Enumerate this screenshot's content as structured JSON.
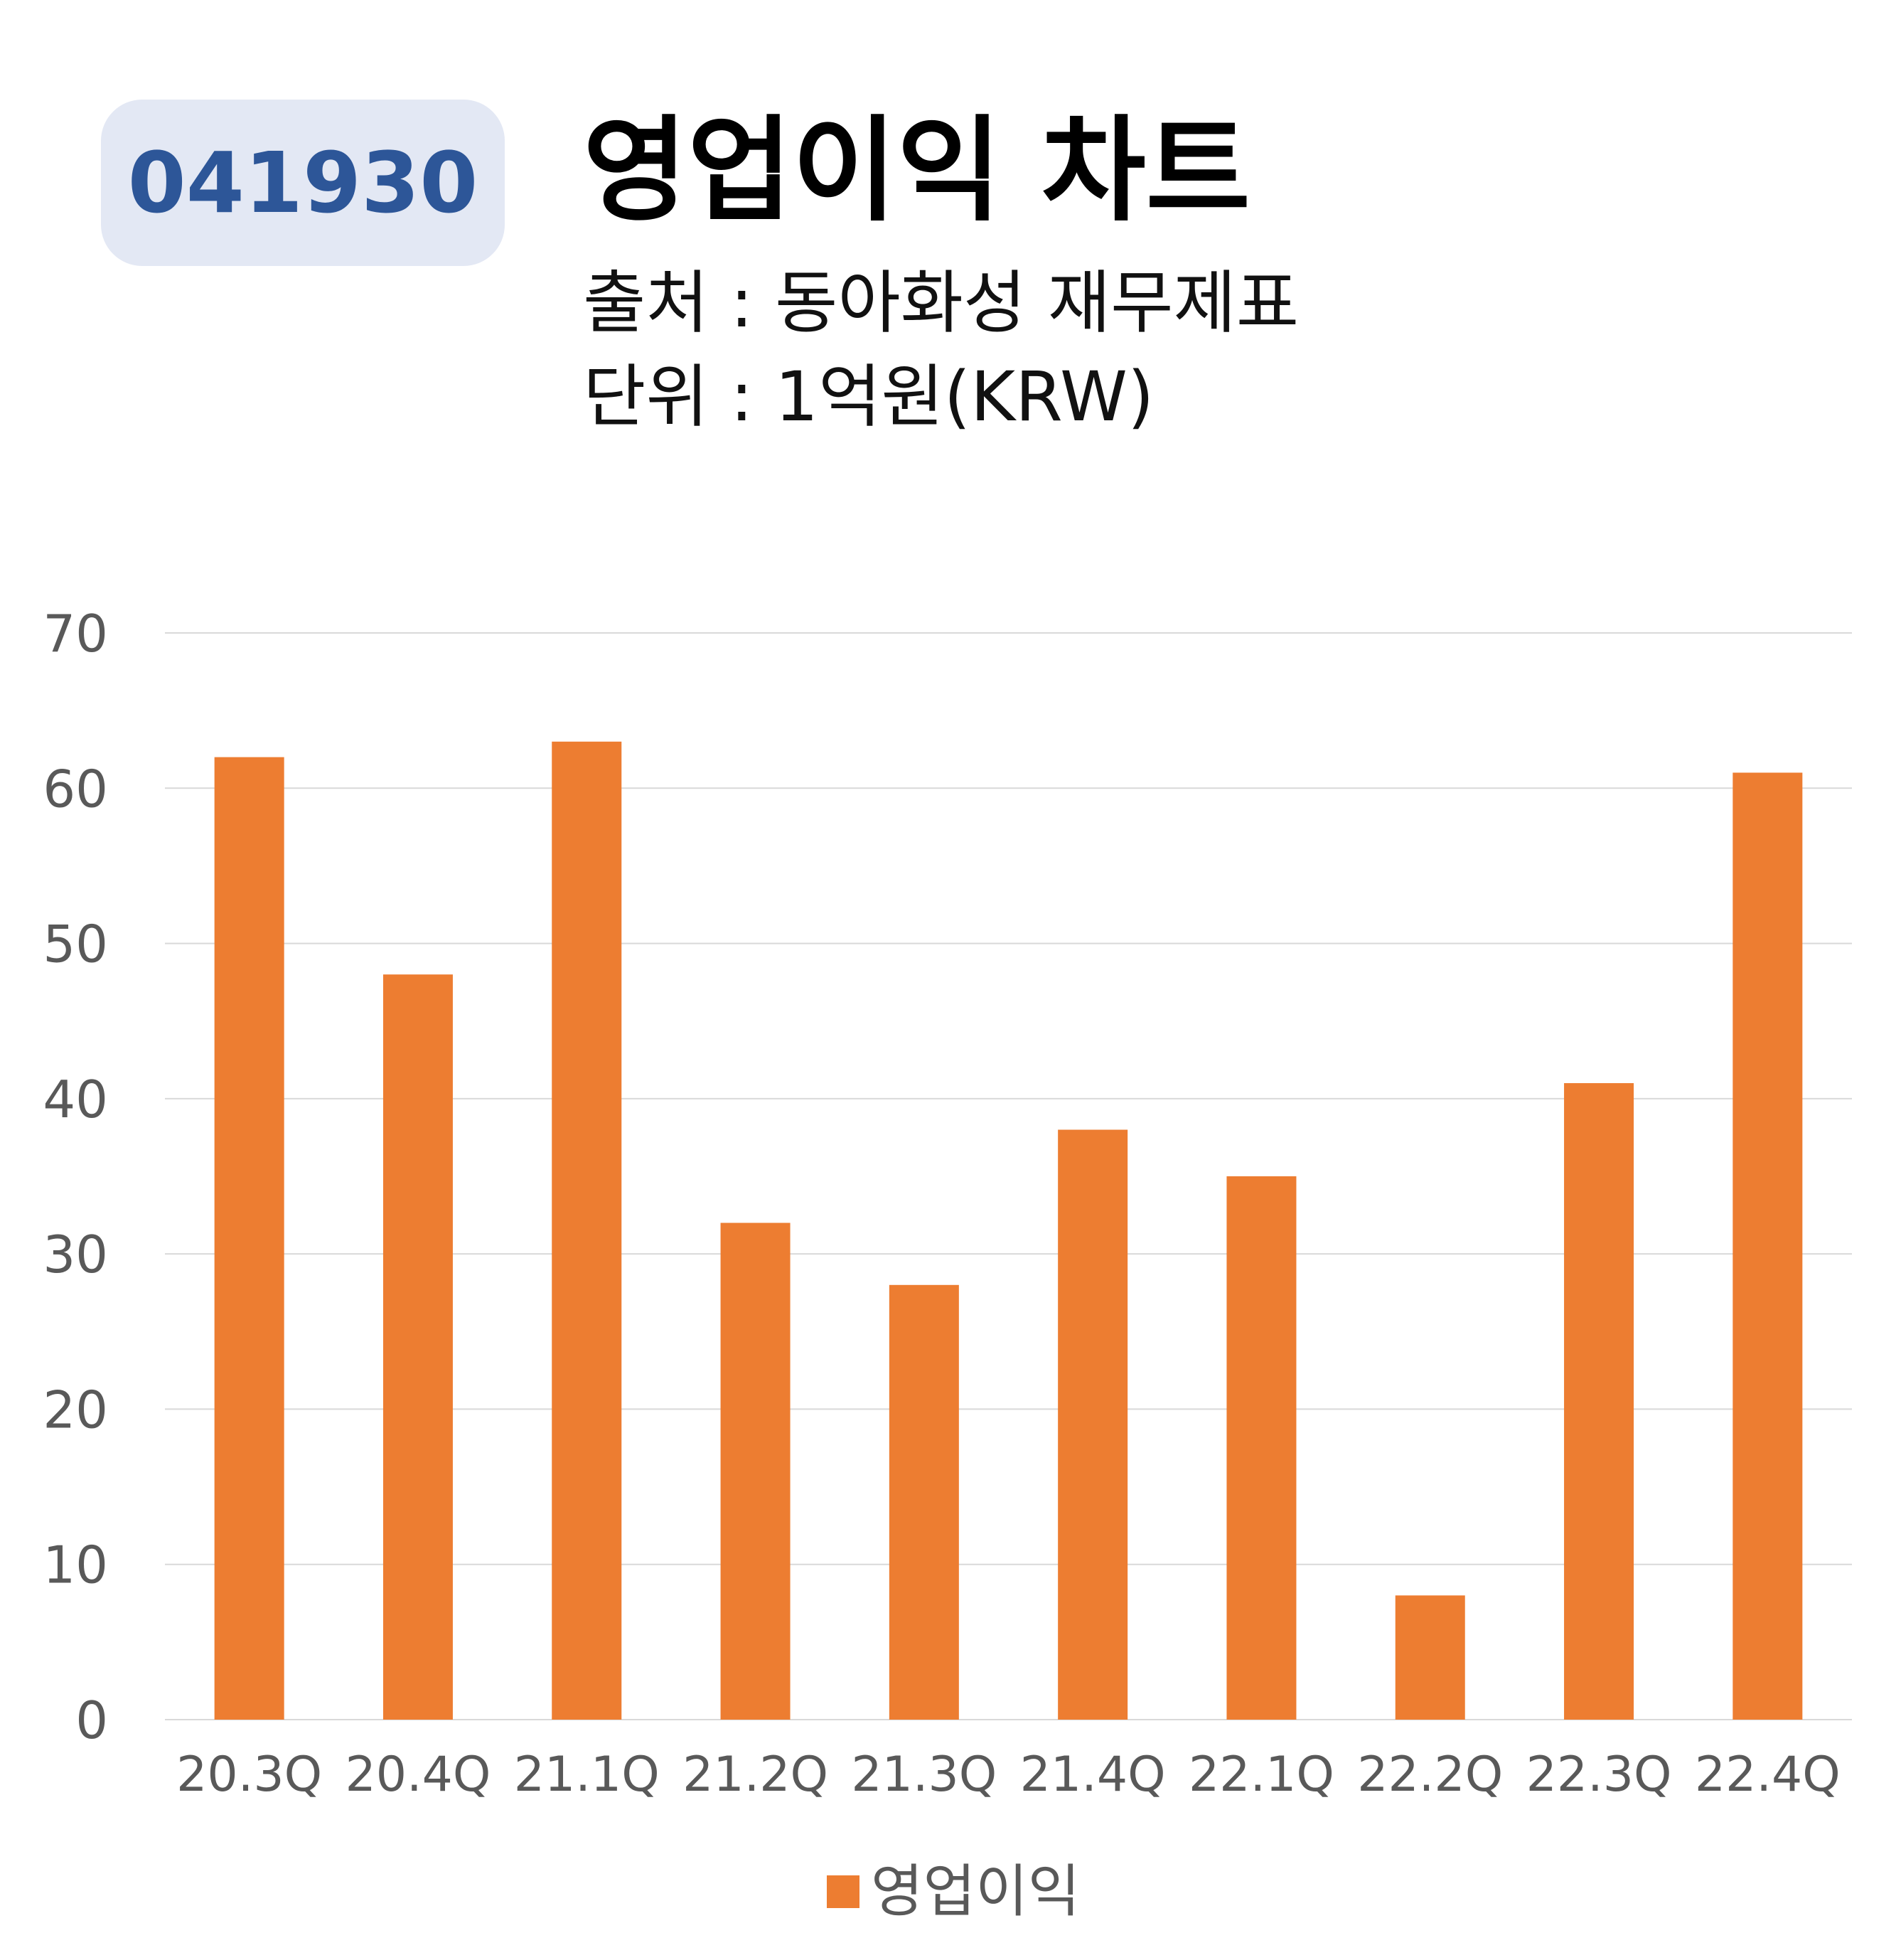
{
  "header": {
    "ticker": "041930",
    "title": "영업이익 차트",
    "source": "출처 : 동아화성 재무제표",
    "unit": "단위 : 1억원(KRW)"
  },
  "colors": {
    "bar": "#ed7d31",
    "badge_bg": "#e3e8f4",
    "badge_text": "#2d5698",
    "grid": "#d9d9d9",
    "tick_text": "#595959"
  },
  "chart_data": {
    "type": "bar",
    "categories": [
      "20.3Q",
      "20.4Q",
      "21.1Q",
      "21.2Q",
      "21.3Q",
      "21.4Q",
      "22.1Q",
      "22.2Q",
      "22.3Q",
      "22.4Q"
    ],
    "series": [
      {
        "name": "영업이익",
        "values": [
          62,
          48,
          63,
          32,
          28,
          38,
          35,
          8,
          41,
          61
        ]
      }
    ],
    "ylim": [
      0,
      70
    ],
    "yticks": [
      0,
      10,
      20,
      30,
      40,
      50,
      60,
      70
    ],
    "grid": true,
    "legend": "bottom"
  }
}
